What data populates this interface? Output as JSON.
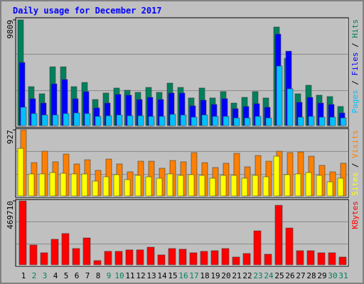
{
  "title": "Daily usage for December 2017",
  "chart_data": [
    {
      "type": "bar",
      "ylim": [
        0,
        9809
      ],
      "yticks": [
        9809
      ],
      "legend_separator": " / ",
      "series": [
        {
          "name": "Hits",
          "color": "#00805c",
          "values": [
            9809,
            3620,
            2960,
            5460,
            5460,
            3620,
            4010,
            2430,
            3030,
            3490,
            3290,
            3090,
            3550,
            3090,
            3950,
            3550,
            2570,
            3490,
            2570,
            3160,
            2100,
            2630,
            3160,
            2570,
            9150,
            6250,
            2960,
            3750,
            2830,
            2700,
            1780
          ]
        },
        {
          "name": "Files",
          "color": "#0000ff",
          "values": [
            5860,
            2500,
            2100,
            3880,
            4280,
            2500,
            3160,
            1650,
            2100,
            2900,
            2830,
            2430,
            2630,
            2430,
            3030,
            3030,
            1840,
            2370,
            1970,
            2500,
            1580,
            1780,
            2040,
            1710,
            8490,
            6910,
            2170,
            2630,
            2100,
            1970,
            1180
          ]
        },
        {
          "name": "Pages",
          "color": "#00c0ff",
          "values": [
            1710,
            1120,
            990,
            990,
            1120,
            1180,
            1120,
            860,
            920,
            990,
            920,
            920,
            860,
            860,
            1050,
            990,
            790,
            990,
            860,
            860,
            720,
            720,
            860,
            720,
            5530,
            3420,
            790,
            860,
            790,
            790,
            720
          ]
        }
      ]
    },
    {
      "type": "bar",
      "ylim": [
        0,
        927
      ],
      "yticks": [
        927
      ],
      "legend_separator": " / ",
      "series": [
        {
          "name": "Visits",
          "color": "#ff8000",
          "values": [
            927,
            468,
            628,
            479,
            588,
            449,
            508,
            359,
            518,
            449,
            339,
            488,
            488,
            389,
            498,
            479,
            608,
            468,
            399,
            459,
            598,
            409,
            568,
            488,
            628,
            608,
            618,
            558,
            429,
            339,
            459
          ]
        },
        {
          "name": "Sites",
          "color": "#ffff00",
          "values": [
            668,
            309,
            309,
            329,
            319,
            309,
            309,
            209,
            269,
            299,
            229,
            289,
            269,
            249,
            309,
            289,
            299,
            289,
            249,
            289,
            289,
            249,
            289,
            269,
            558,
            299,
            309,
            329,
            289,
            199,
            249
          ]
        }
      ]
    },
    {
      "type": "bar",
      "ylim": [
        0,
        469710
      ],
      "yticks": [
        469710
      ],
      "categories": [
        "1",
        "2",
        "3",
        "4",
        "5",
        "6",
        "7",
        "8",
        "9",
        "10",
        "11",
        "12",
        "13",
        "14",
        "15",
        "16",
        "17",
        "18",
        "19",
        "20",
        "21",
        "22",
        "23",
        "24",
        "25",
        "26",
        "27",
        "28",
        "29",
        "30",
        "31"
      ],
      "category_colors": [
        "#000000",
        "#00805c",
        "#00805c",
        "#000000",
        "#000000",
        "#000000",
        "#000000",
        "#000000",
        "#00805c",
        "#00805c",
        "#000000",
        "#000000",
        "#000000",
        "#000000",
        "#000000",
        "#00805c",
        "#00805c",
        "#000000",
        "#000000",
        "#000000",
        "#000000",
        "#000000",
        "#00805c",
        "#00805c",
        "#000000",
        "#000000",
        "#000000",
        "#000000",
        "#000000",
        "#00805c",
        "#00805c"
      ],
      "series": [
        {
          "name": "KBytes",
          "color": "#ff0000",
          "values": [
            469710,
            146000,
            88700,
            188000,
            230000,
            120000,
            198000,
            31300,
            99200,
            99200,
            110000,
            110000,
            130000,
            73000,
            120000,
            115000,
            88700,
            99200,
            104000,
            120000,
            57400,
            83500,
            250000,
            78300,
            438000,
            271000,
            104000,
            104000,
            88700,
            88700,
            57400
          ]
        }
      ]
    }
  ]
}
